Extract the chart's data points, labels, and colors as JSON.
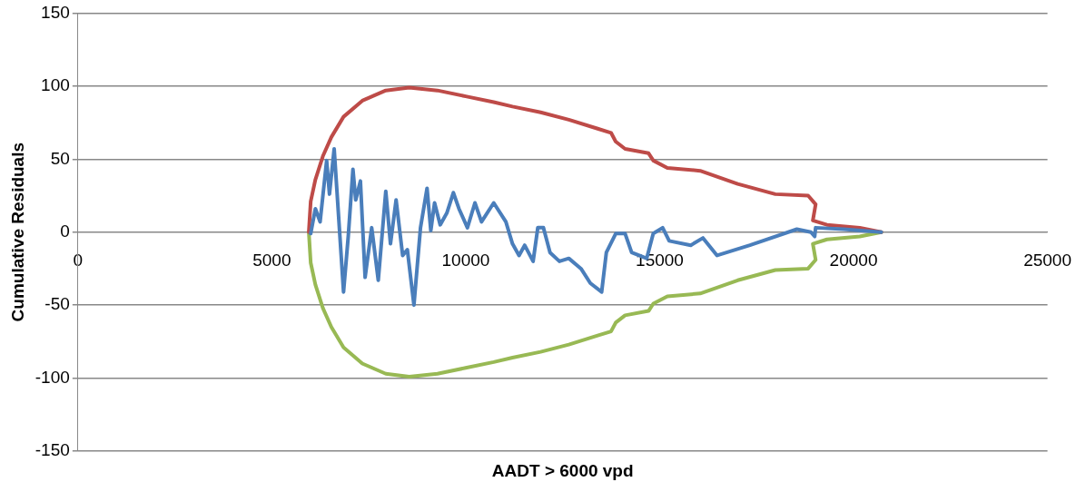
{
  "chart_data": {
    "type": "line",
    "xlabel": "AADT > 6000 vpd",
    "ylabel": "Cumulative Residuals",
    "xlim": [
      0,
      25000
    ],
    "xticks": [
      0,
      5000,
      10000,
      15000,
      20000,
      25000
    ],
    "ylim": [
      -150,
      150
    ],
    "yticks": [
      -150,
      -100,
      -50,
      0,
      50,
      100,
      150
    ],
    "grid": "y",
    "marker": "none",
    "line_style": "solid",
    "series": [
      {
        "color": "#4a7ebb",
        "x": [
          6002,
          6123,
          6244,
          6413,
          6486,
          6607,
          6679,
          6849,
          6970,
          7091,
          7163,
          7284,
          7405,
          7575,
          7744,
          7938,
          8059,
          8204,
          8373,
          8494,
          8664,
          8833,
          9002,
          9099,
          9196,
          9341,
          9511,
          9680,
          9825,
          10043,
          10237,
          10406,
          10721,
          11035,
          11205,
          11374,
          11519,
          11737,
          11858,
          12003,
          12173,
          12415,
          12657,
          12971,
          13213,
          13504,
          13625,
          13867,
          14109,
          14278,
          14665,
          14835,
          15077,
          15246,
          15803,
          16117,
          16480,
          17327,
          18537,
          18900,
          18997,
          19021,
          19747,
          20715
        ],
        "values": [
          -1,
          16,
          7,
          49,
          26,
          57,
          28,
          -41,
          -3,
          43,
          22,
          35,
          -31,
          3,
          -33,
          28,
          -8,
          22,
          -16,
          -12,
          -50,
          3,
          30,
          1,
          20,
          5,
          13,
          27,
          16,
          3,
          20,
          7,
          20,
          7,
          -8,
          -16,
          -9,
          -20,
          3,
          3,
          -14,
          -20,
          -18,
          -25,
          -35,
          -41,
          -14,
          -1,
          -1,
          -14,
          -18,
          -1,
          3,
          -6,
          -9,
          -4,
          -16,
          -9,
          2,
          0,
          -3,
          3,
          2,
          0
        ]
      },
      {
        "color": "#be4b48",
        "x": [
          5953,
          6002,
          6123,
          6316,
          6534,
          6849,
          7333,
          7938,
          8543,
          9269,
          9999,
          10721,
          11205,
          11931,
          12657,
          13383,
          13746,
          13867,
          14109,
          14714,
          14836,
          15198,
          16045,
          17013,
          17981,
          18828,
          19022,
          18950,
          19313,
          20160,
          20716
        ],
        "values": [
          0,
          21,
          36,
          52,
          65,
          79,
          90,
          97,
          99,
          97,
          93,
          89,
          86,
          82,
          77,
          71,
          68,
          62,
          57,
          54,
          49,
          44,
          42,
          33,
          26,
          25,
          19,
          8,
          5,
          3,
          0
        ]
      },
      {
        "color": "#98b954",
        "x": [
          5953,
          6002,
          6123,
          6316,
          6534,
          6849,
          7333,
          7938,
          8543,
          9269,
          9999,
          10721,
          11205,
          11931,
          12657,
          13383,
          13746,
          13867,
          14109,
          14714,
          14836,
          15198,
          16045,
          17013,
          17981,
          18828,
          19022,
          18950,
          19313,
          20160,
          20716
        ],
        "values": [
          0,
          -21,
          -36,
          -52,
          -65,
          -79,
          -90,
          -97,
          -99,
          -97,
          -93,
          -89,
          -86,
          -82,
          -77,
          -71,
          -68,
          -62,
          -57,
          -54,
          -49,
          -44,
          -42,
          -33,
          -26,
          -25,
          -19,
          -8,
          -5,
          -3,
          0
        ]
      }
    ]
  }
}
